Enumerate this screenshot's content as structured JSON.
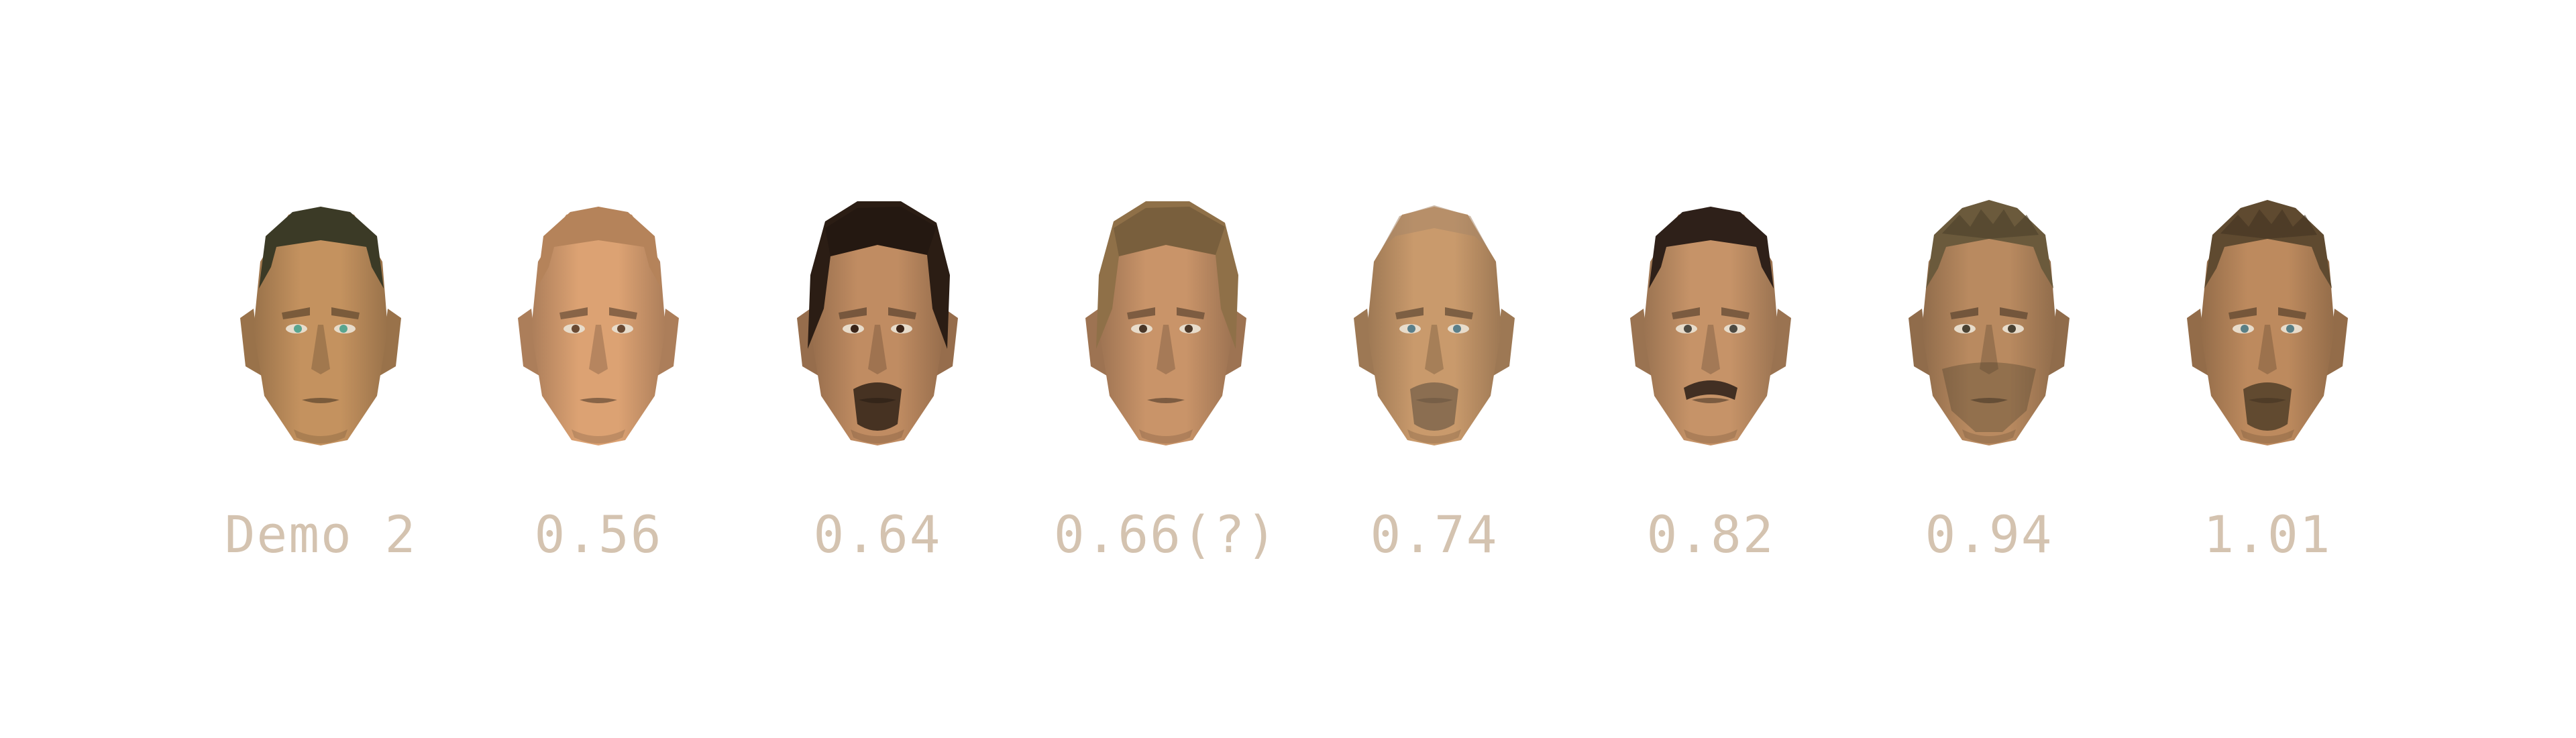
{
  "caption_color": "#d4c3b0",
  "faces": [
    {
      "label": "Demo 2",
      "skin": "#c4925f",
      "hair": "#3b3a26",
      "hair_style": "short",
      "beard": "none",
      "eyes": "#5aa58f"
    },
    {
      "label": "0.56",
      "skin": "#dca273",
      "hair": "#b5835a",
      "hair_style": "short",
      "beard": "none",
      "eyes": "#6a4a33"
    },
    {
      "label": "0.64",
      "skin": "#c08c62",
      "hair": "#2b1d14",
      "hair_style": "long",
      "beard": "goatee",
      "eyes": "#3a2418"
    },
    {
      "label": "0.66(?)",
      "skin": "#c99469",
      "hair": "#8f7048",
      "hair_style": "long",
      "beard": "none",
      "eyes": "#4a3728"
    },
    {
      "label": "0.74",
      "skin": "#c99a6c",
      "hair": "#a88767",
      "hair_style": "bald",
      "beard": "goatee",
      "eyes": "#5b7f8a"
    },
    {
      "label": "0.82",
      "skin": "#c69368",
      "hair": "#2e2019",
      "hair_style": "short",
      "beard": "mustache",
      "eyes": "#4d4a42"
    },
    {
      "label": "0.94",
      "skin": "#b98a60",
      "hair": "#6b5a3c",
      "hair_style": "spiky",
      "beard": "stubble",
      "eyes": "#4a4233"
    },
    {
      "label": "1.01",
      "skin": "#bd8a5e",
      "hair": "#5f4a30",
      "hair_style": "spiky",
      "beard": "goatee",
      "eyes": "#5a7f85"
    }
  ]
}
